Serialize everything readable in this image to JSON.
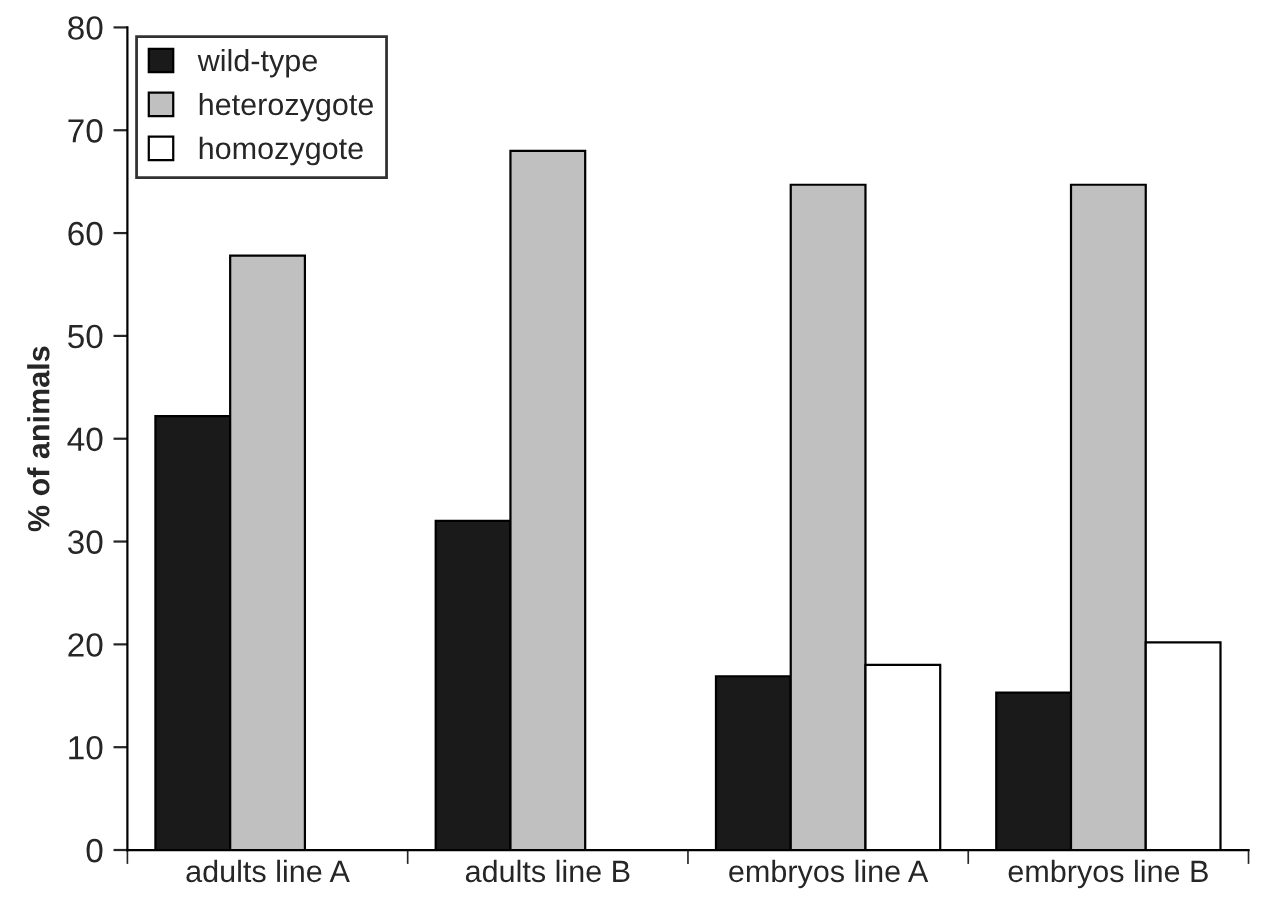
{
  "chart_data": {
    "type": "bar",
    "ylabel": "% of animals",
    "categories": [
      "adults line A",
      "adults line B",
      "embryos line A",
      "embryos line B"
    ],
    "series": [
      {
        "name": "wild-type",
        "color": "#1a1a1a",
        "values": [
          42.2,
          32,
          16.9,
          15.3
        ]
      },
      {
        "name": "heterozygote",
        "color": "#c0c0c0",
        "values": [
          57.8,
          68,
          64.7,
          64.7
        ]
      },
      {
        "name": "homozygote",
        "color": "#ffffff",
        "values": [
          null,
          null,
          18,
          20.2
        ]
      }
    ],
    "ylim": [
      0,
      80
    ],
    "yticks": [
      0,
      10,
      20,
      30,
      40,
      50,
      60,
      70,
      80
    ],
    "grid": false,
    "legend": "top left"
  }
}
